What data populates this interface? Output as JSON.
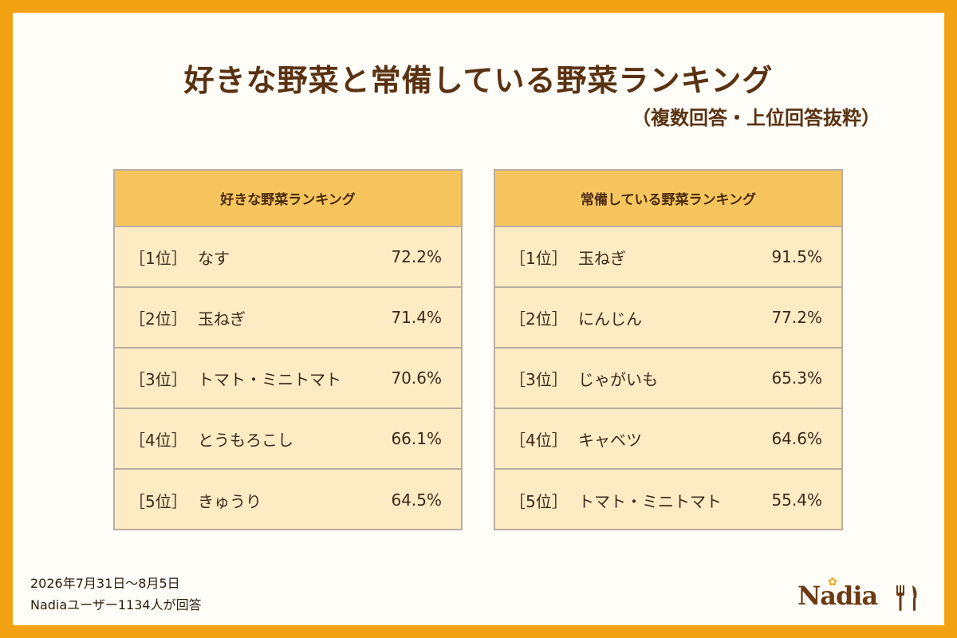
{
  "title": "好きな野菜と常備している野菜ランキング",
  "subtitle": "（複数回答・上位回答抜粋）",
  "tables": [
    {
      "header": "好きな野菜ランキング",
      "rows": [
        {
          "rank": "［1位］",
          "name": "なす",
          "pct": "72.2%"
        },
        {
          "rank": "［2位］",
          "name": "玉ねぎ",
          "pct": "71.4%"
        },
        {
          "rank": "［3位］",
          "name": "トマト・ミニトマト",
          "pct": "70.6%"
        },
        {
          "rank": "［4位］",
          "name": "とうもろこし",
          "pct": "66.1%"
        },
        {
          "rank": "［5位］",
          "name": "きゅうり",
          "pct": "64.5%"
        }
      ]
    },
    {
      "header": "常備している野菜ランキング",
      "rows": [
        {
          "rank": "［1位］",
          "name": "玉ねぎ",
          "pct": "91.5%"
        },
        {
          "rank": "［2位］",
          "name": "にんじん",
          "pct": "77.2%"
        },
        {
          "rank": "［3位］",
          "name": "じゃがいも",
          "pct": "65.3%"
        },
        {
          "rank": "［4位］",
          "name": "キャベツ",
          "pct": "64.6%"
        },
        {
          "rank": "［5位］",
          "name": "トマト・ミニトマト",
          "pct": "55.4%"
        }
      ]
    }
  ],
  "footer": {
    "line1": "2026年7月31日～8月5日",
    "line2": "Nadiaユーザー1134人が回答"
  },
  "logo": {
    "text": "Nadia",
    "icons": [
      "flower-icon",
      "fork-icon",
      "knife-icon"
    ]
  },
  "colors": {
    "frame": "#F3A214",
    "header": "#F7C55E",
    "cell": "#FDEBC4",
    "title": "#5A3212"
  }
}
